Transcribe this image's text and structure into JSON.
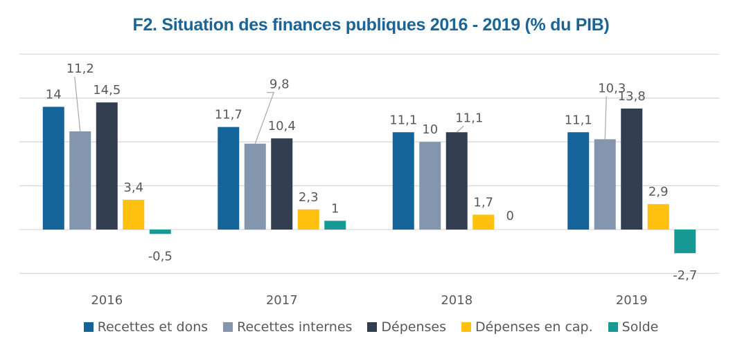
{
  "chart_data": {
    "type": "bar",
    "title": "F2. Situation des finances publiques 2016 - 2019 (% du PIB)",
    "xlabel": "",
    "ylabel": "",
    "categories": [
      "2016",
      "2017",
      "2018",
      "2019"
    ],
    "ylim": [
      -5,
      20
    ],
    "yticks": [
      -5,
      0,
      5,
      10,
      15,
      20
    ],
    "grid": true,
    "y_tick_labels_shown": false,
    "legend_position": "bottom",
    "series": [
      {
        "name": "Recettes et dons",
        "color": "#156499",
        "values": [
          14,
          11.7,
          11.1,
          11.1
        ],
        "labels": [
          "14",
          "11,7",
          "11,1",
          "11,1"
        ]
      },
      {
        "name": "Recettes internes",
        "color": "#8496ae",
        "values": [
          11.2,
          9.8,
          10,
          10.3
        ],
        "labels": [
          "11,2",
          "9,8",
          "10",
          "10,3"
        ]
      },
      {
        "name": "Dépenses",
        "color": "#333f50",
        "values": [
          14.5,
          10.4,
          11.1,
          13.8
        ],
        "labels": [
          "14,5",
          "10,4",
          "11,1",
          "13,8"
        ]
      },
      {
        "name": "Dépenses en cap.",
        "color": "#ffc010",
        "values": [
          3.4,
          2.3,
          1.7,
          2.9
        ],
        "labels": [
          "3,4",
          "2,3",
          "1,7",
          "2,9"
        ]
      },
      {
        "name": "Solde",
        "color": "#179a96",
        "values": [
          -0.5,
          1,
          0,
          -2.7
        ],
        "labels": [
          "-0,5",
          "1",
          "0",
          "-2,7"
        ]
      }
    ]
  }
}
